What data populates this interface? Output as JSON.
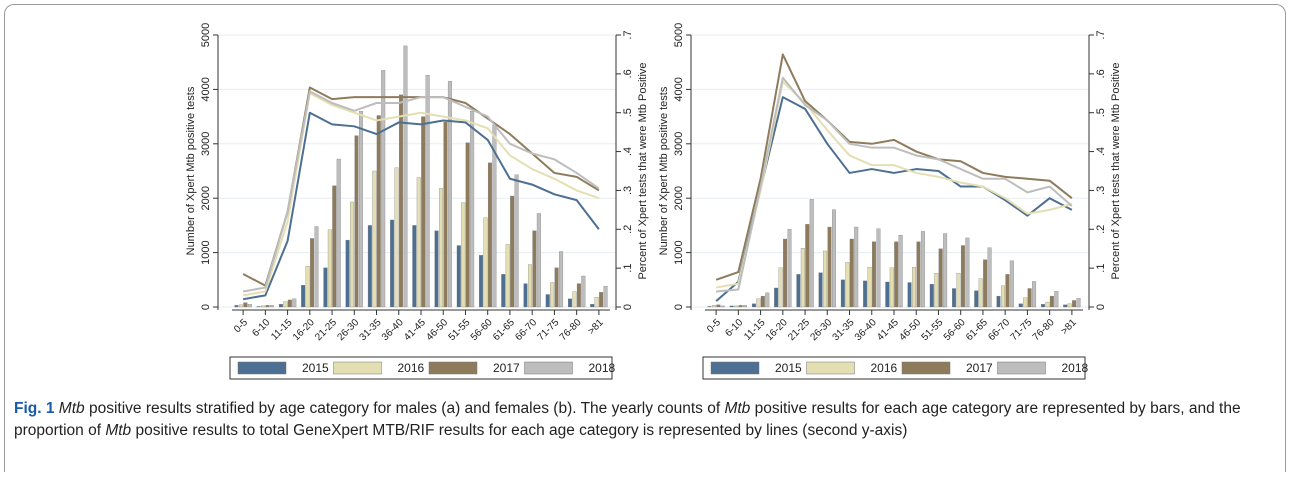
{
  "chart_data": [
    {
      "type": "bar",
      "categories": [
        "0-5",
        "6-10",
        "11-15",
        "16-20",
        "21-25",
        "26-30",
        "31-35",
        "36-40",
        "41-45",
        "46-50",
        "51-55",
        "56-60",
        "61-65",
        "66-70",
        "71-75",
        "76-80",
        ">81"
      ],
      "y_label": "Number of Xpert Mtb positive tests",
      "y2_label": "Percent of Xpert tests that were Mtb Positive",
      "ylim": [
        0,
        5000
      ],
      "yticks": [
        0,
        1000,
        2000,
        3000,
        4000,
        5000
      ],
      "y2lim": [
        0,
        0.7
      ],
      "y2ticks": [
        0,
        {
          "value": 0.1,
          "label": ".1"
        },
        {
          "value": 0.2,
          "label": ".2"
        },
        {
          "value": 0.3,
          "label": ".3"
        },
        {
          "value": 0.4,
          "label": ".4"
        },
        {
          "value": 0.5,
          "label": ".5"
        },
        {
          "value": 0.6,
          "label": ".6"
        },
        {
          "value": 0.7,
          "label": ".7"
        }
      ],
      "grid": true,
      "series": [
        {
          "name": "2015",
          "color": "#4d6f91",
          "values": [
            30,
            10,
            50,
            400,
            720,
            1230,
            1500,
            1600,
            1500,
            1400,
            1130,
            950,
            600,
            430,
            230,
            150,
            50
          ],
          "line_values": [
            0.02,
            0.03,
            0.17,
            0.5,
            0.47,
            0.465,
            0.445,
            0.475,
            0.47,
            0.48,
            0.475,
            0.43,
            0.33,
            0.315,
            0.29,
            0.275,
            0.2
          ],
          "axis": "y2"
        },
        {
          "name": "2016",
          "color": "#e4dfb3",
          "values": [
            40,
            20,
            100,
            750,
            1420,
            1930,
            2500,
            2560,
            2380,
            2180,
            1920,
            1640,
            1150,
            780,
            450,
            280,
            180
          ],
          "line_values": [
            0.03,
            0.04,
            0.22,
            0.55,
            0.52,
            0.5,
            0.48,
            0.49,
            0.5,
            0.49,
            0.48,
            0.46,
            0.39,
            0.355,
            0.33,
            0.3,
            0.28
          ],
          "axis": "y2"
        },
        {
          "name": "2017",
          "color": "#8e7b5c",
          "values": [
            80,
            30,
            130,
            1260,
            2230,
            3150,
            3520,
            3900,
            3500,
            3400,
            3020,
            2650,
            2040,
            1400,
            720,
            430,
            270
          ],
          "line_values": [
            0.085,
            0.055,
            0.245,
            0.565,
            0.535,
            0.54,
            0.54,
            0.54,
            0.54,
            0.54,
            0.525,
            0.485,
            0.445,
            0.395,
            0.345,
            0.335,
            0.3
          ],
          "axis": "y2"
        },
        {
          "name": "2018",
          "color": "#bdbdbd",
          "values": [
            50,
            30,
            150,
            1480,
            2720,
            3600,
            4350,
            4800,
            4260,
            4150,
            3600,
            3340,
            2430,
            1720,
            1020,
            570,
            380
          ],
          "line_values": [
            0.04,
            0.05,
            0.245,
            0.555,
            0.525,
            0.505,
            0.525,
            0.525,
            0.54,
            0.54,
            0.515,
            0.49,
            0.42,
            0.395,
            0.38,
            0.345,
            0.305
          ],
          "axis": "y2"
        }
      ]
    },
    {
      "type": "bar",
      "categories": [
        "0-5",
        "6-10",
        "11-15",
        "16-20",
        "21-25",
        "26-30",
        "31-35",
        "36-40",
        "41-45",
        "46-50",
        "51-55",
        "56-60",
        "61-65",
        "66-70",
        "71-75",
        "76-80",
        ">81"
      ],
      "y_label": "Number of Xpert Mtb positive tests",
      "y2_label": "Percent of Xpert tests that were Mtb Positive",
      "ylim": [
        0,
        5000
      ],
      "yticks": [
        0,
        1000,
        2000,
        3000,
        4000,
        5000
      ],
      "y2lim": [
        0,
        0.7
      ],
      "y2ticks": [
        0,
        {
          "value": 0.1,
          "label": ".1"
        },
        {
          "value": 0.2,
          "label": ".2"
        },
        {
          "value": 0.3,
          "label": ".3"
        },
        {
          "value": 0.4,
          "label": ".4"
        },
        {
          "value": 0.5,
          "label": ".5"
        },
        {
          "value": 0.6,
          "label": ".6"
        },
        {
          "value": 0.7,
          "label": ".7"
        }
      ],
      "grid": true,
      "series": [
        {
          "name": "2015",
          "color": "#4d6f91",
          "values": [
            10,
            20,
            60,
            350,
            600,
            630,
            500,
            480,
            460,
            450,
            420,
            340,
            300,
            200,
            60,
            50,
            40
          ],
          "line_values": [
            0.015,
            0.065,
            0.305,
            0.54,
            0.51,
            0.42,
            0.345,
            0.355,
            0.345,
            0.355,
            0.35,
            0.31,
            0.31,
            0.275,
            0.235,
            0.28,
            0.25
          ],
          "axis": "y2"
        },
        {
          "name": "2016",
          "color": "#e4dfb3",
          "values": [
            30,
            20,
            150,
            720,
            1080,
            1030,
            820,
            730,
            720,
            730,
            620,
            620,
            520,
            390,
            170,
            90,
            60
          ],
          "line_values": [
            0.05,
            0.06,
            0.3,
            0.58,
            0.525,
            0.455,
            0.39,
            0.365,
            0.365,
            0.345,
            0.335,
            0.32,
            0.31,
            0.28,
            0.24,
            0.25,
            0.265
          ],
          "axis": "y2"
        },
        {
          "name": "2017",
          "color": "#8e7b5c",
          "values": [
            40,
            30,
            200,
            1250,
            1520,
            1470,
            1250,
            1200,
            1200,
            1200,
            1070,
            1130,
            870,
            600,
            340,
            200,
            120
          ],
          "line_values": [
            0.07,
            0.09,
            0.33,
            0.65,
            0.53,
            0.48,
            0.425,
            0.42,
            0.43,
            0.4,
            0.38,
            0.375,
            0.345,
            0.335,
            0.33,
            0.325,
            0.28
          ],
          "axis": "y2"
        },
        {
          "name": "2018",
          "color": "#bdbdbd",
          "values": [
            20,
            30,
            260,
            1430,
            1980,
            1790,
            1470,
            1440,
            1320,
            1390,
            1350,
            1270,
            1090,
            850,
            470,
            290,
            160
          ],
          "line_values": [
            0.04,
            0.045,
            0.31,
            0.59,
            0.52,
            0.48,
            0.42,
            0.41,
            0.41,
            0.39,
            0.38,
            0.355,
            0.33,
            0.33,
            0.295,
            0.31,
            0.26
          ],
          "axis": "y2"
        }
      ]
    }
  ],
  "caption": {
    "label": "Fig. 1",
    "parts": [
      "Mtb",
      "positive results stratified by age category for males (a) and females (b). The yearly counts of",
      "Mtb",
      "positive results for each age category are represented by bars, and the proportion of",
      "Mtb",
      "positive results to total GeneXpert MTB/RIF results for each age category is represented by lines (second y-axis)"
    ]
  }
}
